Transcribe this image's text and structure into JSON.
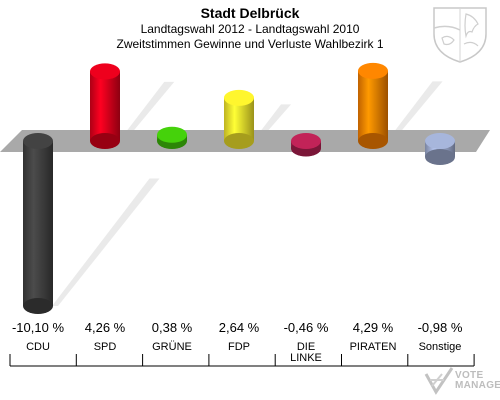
{
  "header": {
    "title": "Stadt Delbrück",
    "subtitle1": "Landtagswahl 2012 - Landtagswahl 2010",
    "subtitle2": "Zweitstimmen Gewinne und Verluste Wahlbezirk 1"
  },
  "logo": {
    "line1": "VOTE",
    "line2": "MANAGER"
  },
  "chart_data": {
    "type": "bar",
    "categories": [
      "CDU",
      "SPD",
      "GRÜNE",
      "FDP",
      "DIE LINKE",
      "PIRATEN",
      "Sonstige"
    ],
    "values": [
      -10.1,
      4.26,
      0.38,
      2.64,
      -0.46,
      4.29,
      -0.98
    ],
    "value_labels": [
      "-10,10 %",
      "4,26 %",
      "0,38 %",
      "2,64 %",
      "-0,46 %",
      "4,29 %",
      "-0,98 %"
    ],
    "colors": [
      "#3d3d3d",
      "#d8001a",
      "#3fbf0a",
      "#ede02a",
      "#b02050",
      "#f07b00",
      "#98a5c8"
    ],
    "ylim": [
      -10.1,
      4.29
    ],
    "grid": false,
    "legend": "none"
  }
}
